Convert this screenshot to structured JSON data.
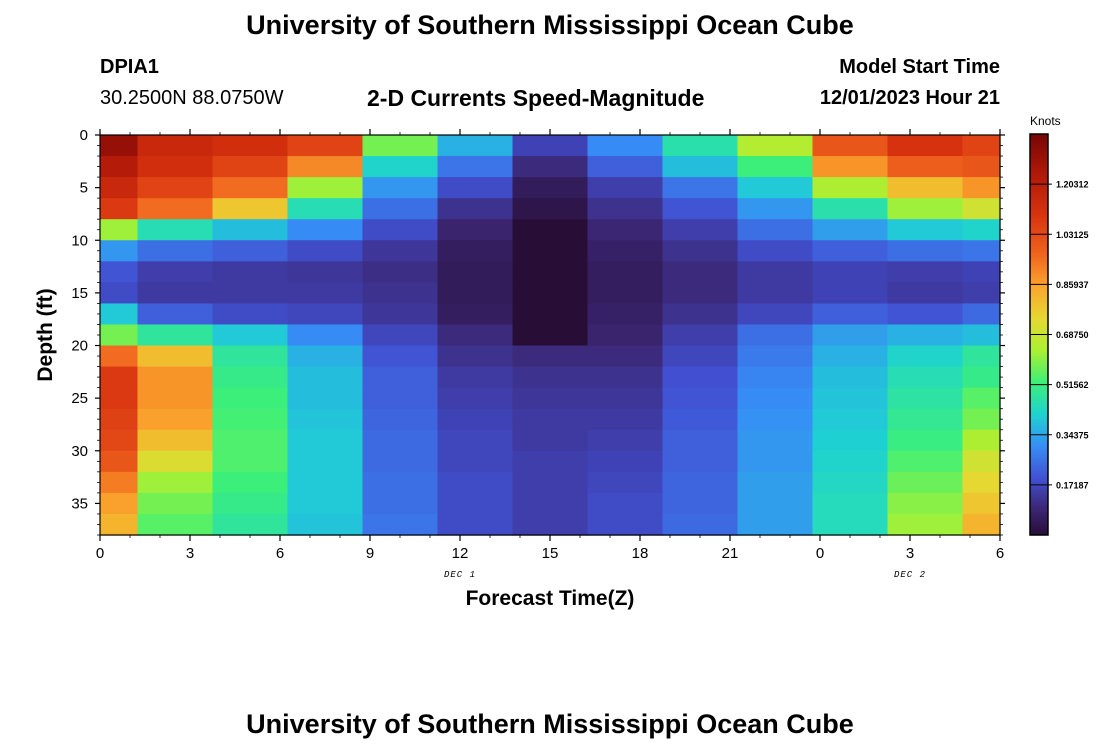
{
  "header": {
    "title": "University of Southern Mississippi Ocean Cube",
    "station": "DPIA1",
    "coords": "30.2500N  88.0750W",
    "subtitle": "2-D Currents Speed-Magnitude",
    "start_label": "Model Start Time",
    "start_value": "12/01/2023 Hour 21"
  },
  "footer": {
    "title": "University of Southern Mississippi Ocean Cube"
  },
  "chart_data": {
    "type": "heatmap",
    "title": "2-D Currents Speed-Magnitude",
    "xlabel": "Forecast Time(Z)",
    "ylabel": "Depth (ft)",
    "x_tick_labels": [
      "0",
      "3",
      "6",
      "9",
      "12",
      "15",
      "18",
      "21",
      "0",
      "3",
      "6"
    ],
    "x_range": [
      0,
      30
    ],
    "date_labels": [
      {
        "x": 12,
        "label": "DEC 1"
      },
      {
        "x": 27,
        "label": "DEC 2"
      }
    ],
    "y_ticks": [
      0,
      5,
      10,
      15,
      20,
      25,
      30,
      35
    ],
    "y_range": [
      0,
      38
    ],
    "colorbar": {
      "label": "Knots",
      "ticks": [
        "1.20312",
        "1.03125",
        "0.85937",
        "0.68750",
        "0.51562",
        "0.34375",
        "0.17187"
      ],
      "tick_values": [
        1.20312,
        1.03125,
        0.85937,
        0.6875,
        0.51562,
        0.34375,
        0.17187
      ],
      "range": [
        0,
        1.375
      ]
    },
    "columns_x": [
      0,
      2.5,
      5,
      7.5,
      10,
      12.5,
      15,
      17.5,
      20,
      22.5,
      25,
      27.5,
      30
    ],
    "depth_levels": [
      0,
      2,
      4,
      6,
      8,
      10,
      12,
      14,
      16,
      18,
      20,
      22,
      24,
      26,
      28,
      30,
      32,
      34,
      36,
      38
    ],
    "values": [
      [
        1.3,
        1.15,
        1.12,
        1.05,
        0.58,
        0.36,
        0.16,
        0.3,
        0.46,
        0.65,
        1.0,
        1.1,
        1.05
      ],
      [
        1.22,
        1.12,
        1.05,
        0.9,
        0.42,
        0.26,
        0.1,
        0.22,
        0.38,
        0.52,
        0.88,
        0.98,
        1.0
      ],
      [
        1.15,
        1.05,
        0.95,
        0.62,
        0.32,
        0.18,
        0.05,
        0.15,
        0.26,
        0.4,
        0.64,
        0.8,
        0.88
      ],
      [
        1.08,
        0.95,
        0.78,
        0.45,
        0.25,
        0.12,
        0.03,
        0.12,
        0.2,
        0.32,
        0.46,
        0.62,
        0.7
      ],
      [
        0.62,
        0.45,
        0.38,
        0.3,
        0.18,
        0.08,
        0.0,
        0.09,
        0.15,
        0.25,
        0.33,
        0.4,
        0.42
      ],
      [
        0.32,
        0.25,
        0.22,
        0.18,
        0.13,
        0.06,
        0.0,
        0.07,
        0.12,
        0.18,
        0.22,
        0.25,
        0.26
      ],
      [
        0.2,
        0.15,
        0.14,
        0.13,
        0.11,
        0.05,
        0.0,
        0.06,
        0.1,
        0.14,
        0.16,
        0.15,
        0.16
      ],
      [
        0.18,
        0.14,
        0.14,
        0.14,
        0.12,
        0.05,
        0.0,
        0.06,
        0.1,
        0.14,
        0.16,
        0.14,
        0.15
      ],
      [
        0.4,
        0.22,
        0.18,
        0.17,
        0.13,
        0.06,
        0.0,
        0.07,
        0.12,
        0.17,
        0.22,
        0.2,
        0.24
      ],
      [
        0.58,
        0.48,
        0.4,
        0.3,
        0.17,
        0.1,
        0.0,
        0.08,
        0.15,
        0.25,
        0.33,
        0.36,
        0.38
      ],
      [
        0.95,
        0.8,
        0.48,
        0.36,
        0.2,
        0.12,
        0.1,
        0.1,
        0.17,
        0.27,
        0.36,
        0.42,
        0.48
      ],
      [
        1.08,
        0.88,
        0.5,
        0.38,
        0.22,
        0.14,
        0.12,
        0.12,
        0.19,
        0.29,
        0.38,
        0.45,
        0.5
      ],
      [
        1.08,
        0.88,
        0.52,
        0.38,
        0.22,
        0.15,
        0.13,
        0.13,
        0.2,
        0.3,
        0.39,
        0.47,
        0.55
      ],
      [
        1.06,
        0.86,
        0.53,
        0.39,
        0.23,
        0.16,
        0.14,
        0.14,
        0.21,
        0.31,
        0.4,
        0.49,
        0.58
      ],
      [
        1.04,
        0.8,
        0.54,
        0.4,
        0.24,
        0.17,
        0.14,
        0.15,
        0.22,
        0.32,
        0.41,
        0.51,
        0.64
      ],
      [
        1.0,
        0.72,
        0.54,
        0.4,
        0.24,
        0.17,
        0.15,
        0.16,
        0.22,
        0.32,
        0.42,
        0.54,
        0.7
      ],
      [
        0.92,
        0.62,
        0.52,
        0.4,
        0.25,
        0.18,
        0.15,
        0.17,
        0.23,
        0.33,
        0.43,
        0.57,
        0.74
      ],
      [
        0.86,
        0.58,
        0.5,
        0.4,
        0.25,
        0.18,
        0.15,
        0.18,
        0.23,
        0.33,
        0.44,
        0.6,
        0.78
      ],
      [
        0.82,
        0.55,
        0.48,
        0.39,
        0.26,
        0.18,
        0.15,
        0.18,
        0.24,
        0.33,
        0.44,
        0.62,
        0.82
      ],
      [
        0.8,
        0.53,
        0.47,
        0.38,
        0.26,
        0.18,
        0.14,
        0.18,
        0.24,
        0.33,
        0.45,
        0.64,
        0.86
      ]
    ]
  }
}
